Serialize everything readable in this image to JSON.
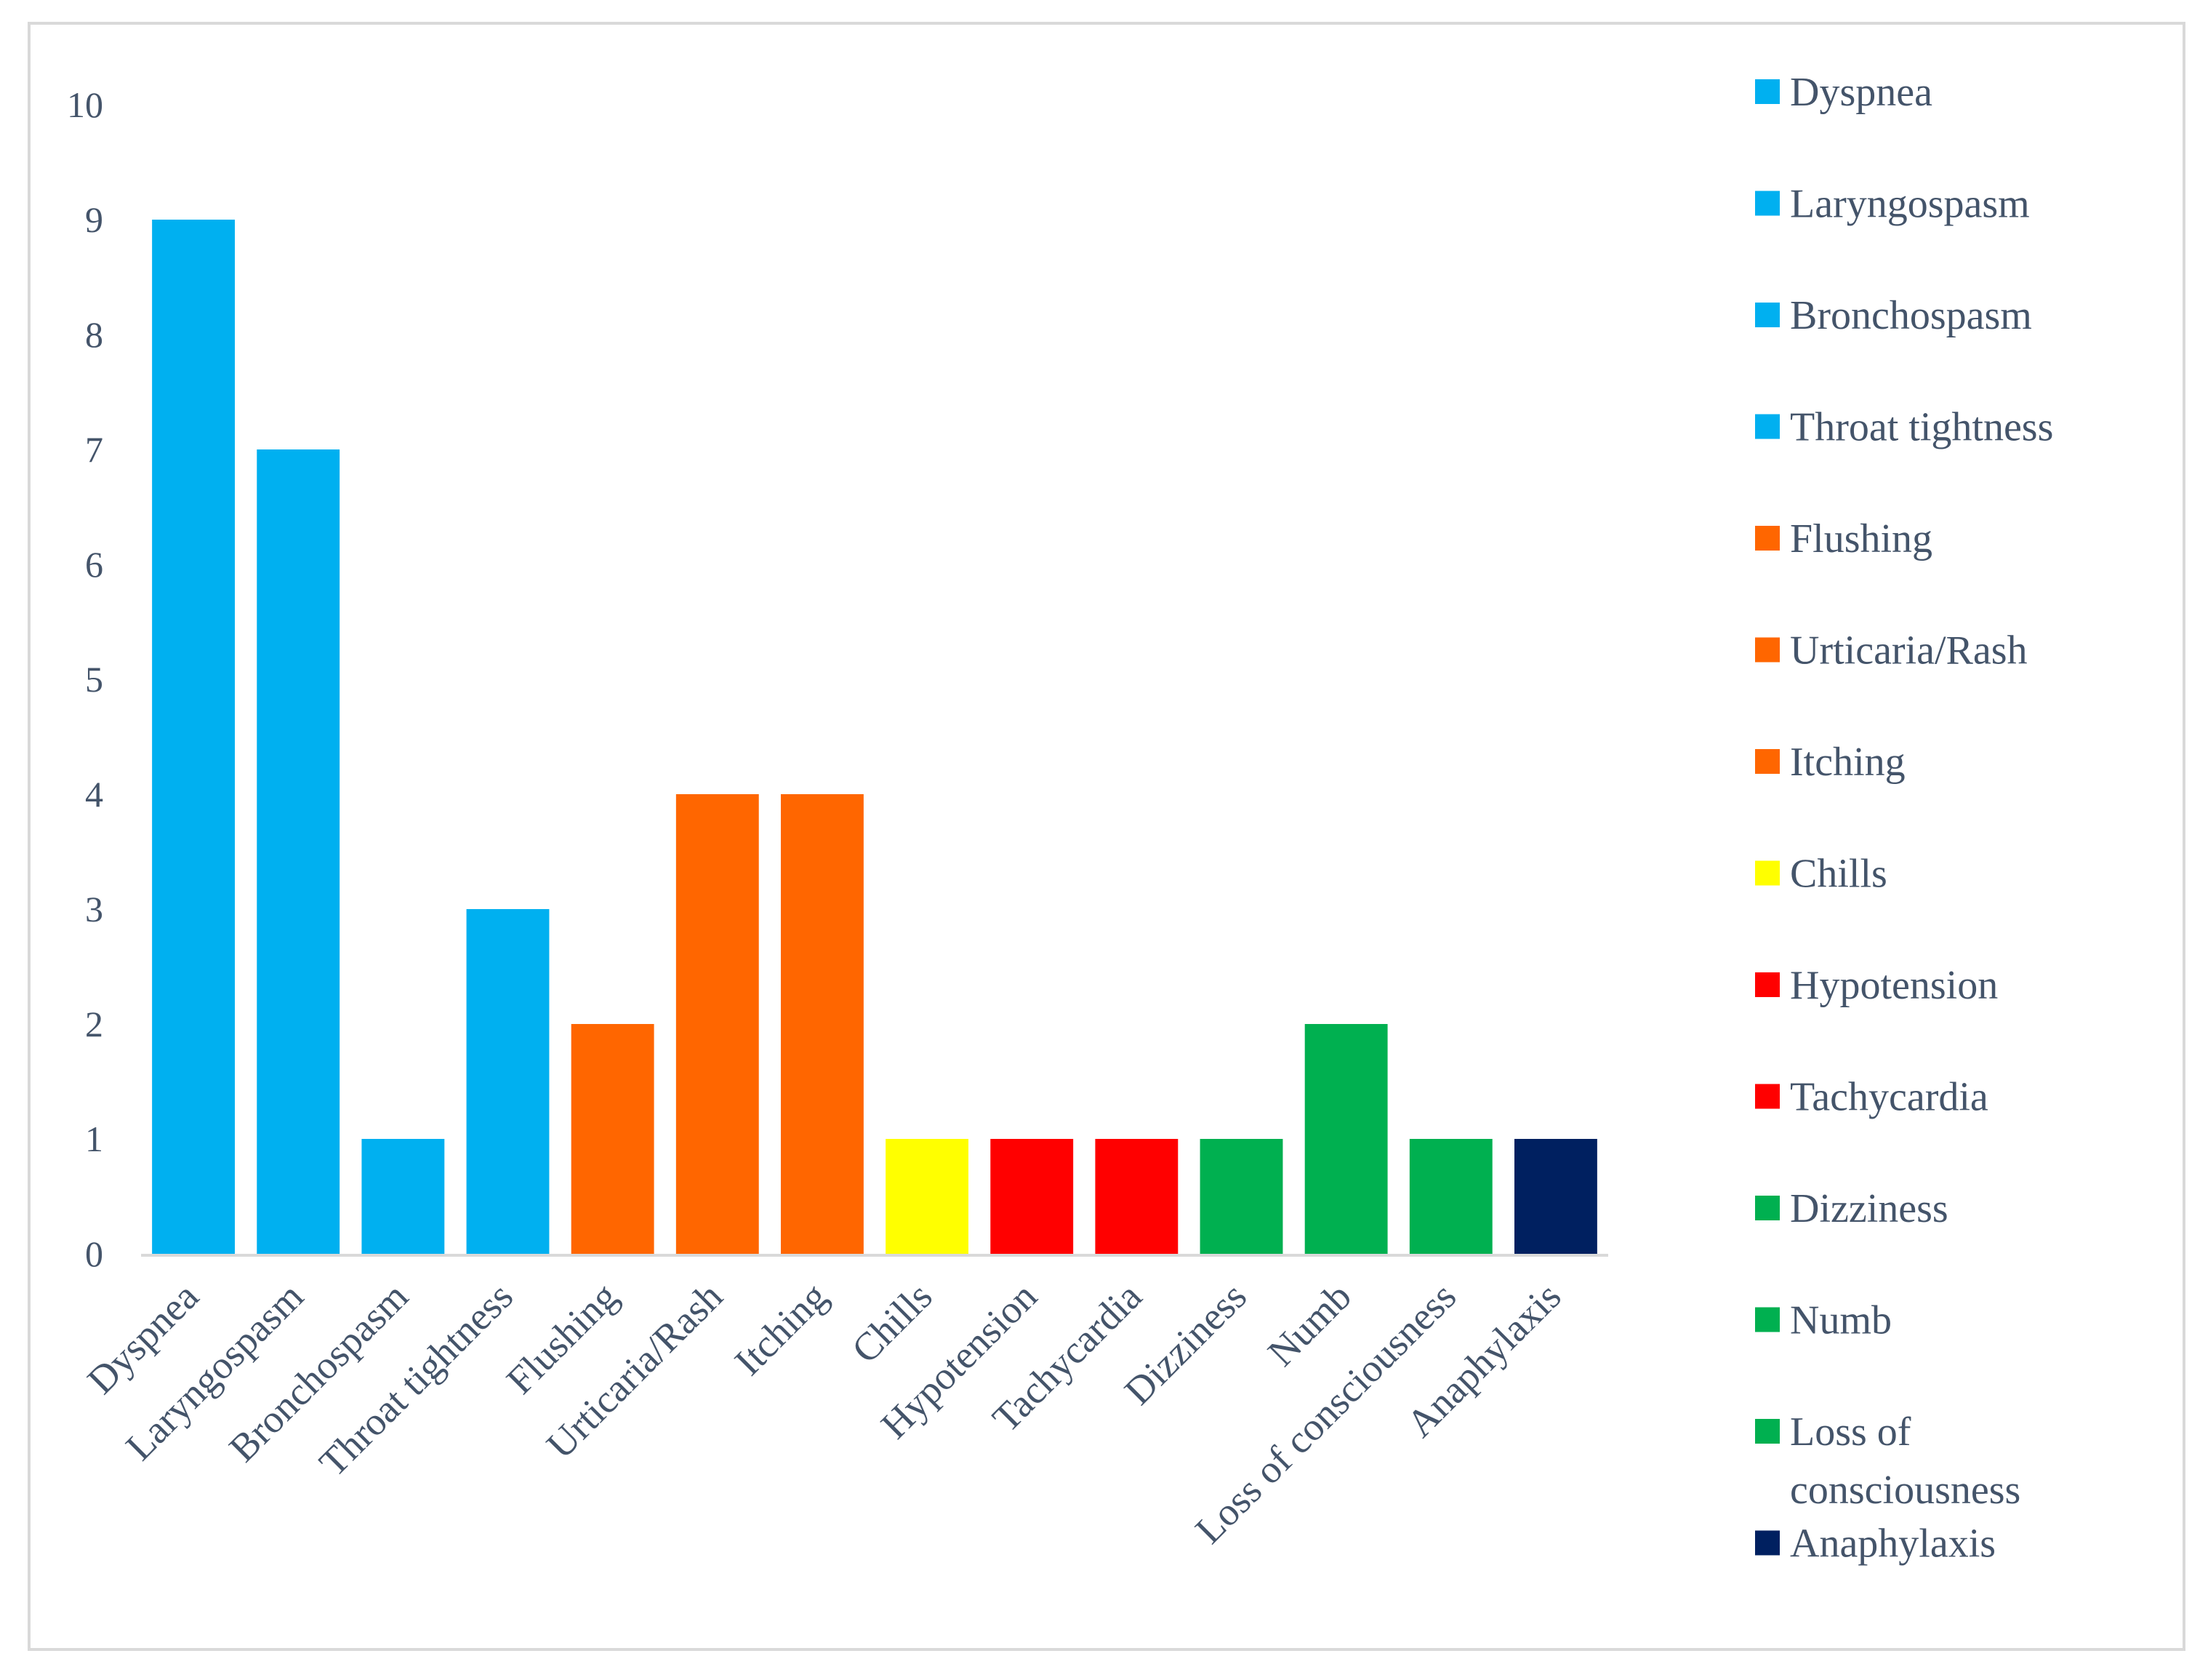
{
  "chart_data": {
    "type": "bar",
    "title": "",
    "xlabel": "",
    "ylabel": "",
    "ylim": [
      0,
      10
    ],
    "yticks": [
      0,
      1,
      2,
      3,
      4,
      5,
      6,
      7,
      8,
      9,
      10
    ],
    "grid": false,
    "legend_position": "right",
    "categories": [
      "Dyspnea",
      "Laryngospasm",
      "Bronchospasm",
      "Throat tightness",
      "Flushing",
      "Urticaria/Rash",
      "Itching",
      "Chills",
      "Hypotension",
      "Tachycardia",
      "Dizziness",
      "Numb",
      "Loss of consciousness",
      "Anaphylaxis"
    ],
    "values": [
      9,
      7,
      1,
      3,
      2,
      4,
      4,
      1,
      1,
      1,
      1,
      2,
      1,
      1
    ],
    "colors": [
      "#00b0f0",
      "#00b0f0",
      "#00b0f0",
      "#00b0f0",
      "#ff6600",
      "#ff6600",
      "#ff6600",
      "#ffff00",
      "#ff0000",
      "#ff0000",
      "#00b050",
      "#00b050",
      "#00b050",
      "#002060"
    ],
    "legend": [
      {
        "lines": [
          "Dyspnea"
        ],
        "color": "#00b0f0"
      },
      {
        "lines": [
          "Laryngospasm"
        ],
        "color": "#00b0f0"
      },
      {
        "lines": [
          "Bronchospasm"
        ],
        "color": "#00b0f0"
      },
      {
        "lines": [
          "Throat tightness"
        ],
        "color": "#00b0f0"
      },
      {
        "lines": [
          "Flushing"
        ],
        "color": "#ff6600"
      },
      {
        "lines": [
          "Urticaria/Rash"
        ],
        "color": "#ff6600"
      },
      {
        "lines": [
          "Itching"
        ],
        "color": "#ff6600"
      },
      {
        "lines": [
          "Chills"
        ],
        "color": "#ffff00"
      },
      {
        "lines": [
          "Hypotension"
        ],
        "color": "#ff0000"
      },
      {
        "lines": [
          "Tachycardia"
        ],
        "color": "#ff0000"
      },
      {
        "lines": [
          "Dizziness"
        ],
        "color": "#00b050"
      },
      {
        "lines": [
          "Numb"
        ],
        "color": "#00b050"
      },
      {
        "lines": [
          "Loss of",
          "consciousness"
        ],
        "color": "#00b050"
      },
      {
        "lines": [
          "Anaphylaxis"
        ],
        "color": "#002060"
      }
    ]
  }
}
